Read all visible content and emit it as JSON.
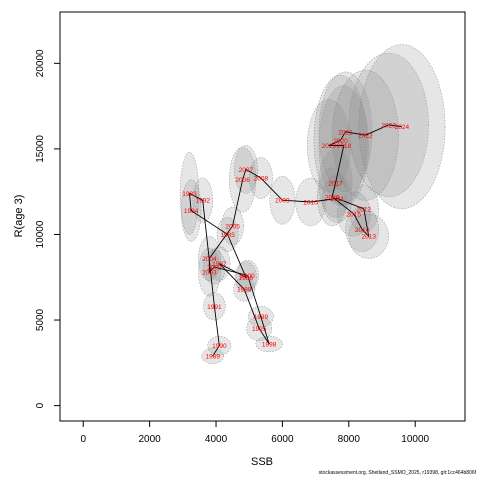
{
  "chart_data": {
    "type": "scatter",
    "xlabel": "SSB",
    "ylabel": "R(age 3)",
    "xlim": [
      -700,
      11500
    ],
    "ylim": [
      -900,
      23000
    ],
    "x_ticks": [
      0,
      2000,
      4000,
      6000,
      8000,
      10000
    ],
    "y_ticks": [
      0,
      5000,
      10000,
      15000,
      20000
    ],
    "grid": false,
    "label_color": "#ff0000",
    "line_color": "#000000",
    "ellipse_fill": "#808080",
    "series": [
      {
        "year": "1983",
        "ssb": 3200,
        "rec": 12400,
        "sx": 280,
        "sy": 2400,
        "opacity": 0.2
      },
      {
        "year": "1984",
        "ssb": 3250,
        "rec": 11400,
        "sx": 300,
        "sy": 1800,
        "opacity": 0.2
      },
      {
        "year": "1985",
        "ssb": 4350,
        "rec": 10000,
        "sx": 320,
        "sy": 1000,
        "opacity": 0.2
      },
      {
        "year": "1986",
        "ssb": 4900,
        "rec": 7500,
        "sx": 320,
        "sy": 900,
        "opacity": 0.2
      },
      {
        "year": "1987",
        "ssb": 4100,
        "rec": 8300,
        "sx": 320,
        "sy": 1000,
        "opacity": 0.2
      },
      {
        "year": "1988",
        "ssb": 4850,
        "rec": 6800,
        "sx": 320,
        "sy": 700,
        "opacity": 0.2
      },
      {
        "year": "1989",
        "ssb": 3900,
        "rec": 2900,
        "sx": 330,
        "sy": 450,
        "opacity": 0.2
      },
      {
        "year": "1990",
        "ssb": 4100,
        "rec": 3500,
        "sx": 350,
        "sy": 550,
        "opacity": 0.2
      },
      {
        "year": "1991",
        "ssb": 3950,
        "rec": 5800,
        "sx": 330,
        "sy": 800,
        "opacity": 0.2
      },
      {
        "year": "1992",
        "ssb": 3600,
        "rec": 12000,
        "sx": 300,
        "sy": 1300,
        "opacity": 0.2
      },
      {
        "year": "1995",
        "ssb": 5300,
        "rec": 4500,
        "sx": 380,
        "sy": 700,
        "opacity": 0.2
      },
      {
        "year": "1998",
        "ssb": 5600,
        "rec": 3600,
        "sx": 400,
        "sy": 450,
        "opacity": 0.2
      },
      {
        "year": "1999",
        "ssb": 5350,
        "rec": 5200,
        "sx": 380,
        "sy": 600,
        "opacity": 0.2
      },
      {
        "year": "2000",
        "ssb": 4950,
        "rec": 7600,
        "sx": 330,
        "sy": 900,
        "opacity": 0.2
      },
      {
        "year": "2002",
        "ssb": 3950,
        "rec": 8100,
        "sx": 330,
        "sy": 1000,
        "opacity": 0.2
      },
      {
        "year": "2003",
        "ssb": 3800,
        "rec": 7800,
        "sx": 330,
        "sy": 1400,
        "opacity": 0.2
      },
      {
        "year": "2004",
        "ssb": 3800,
        "rec": 8600,
        "sx": 330,
        "sy": 1300,
        "opacity": 0.2
      },
      {
        "year": "2005",
        "ssb": 4500,
        "rec": 10500,
        "sx": 330,
        "sy": 1100,
        "opacity": 0.2
      },
      {
        "year": "2006",
        "ssb": 4800,
        "rec": 13200,
        "sx": 400,
        "sy": 1900,
        "opacity": 0.2
      },
      {
        "year": "2007",
        "ssb": 4900,
        "rec": 13800,
        "sx": 350,
        "sy": 1400,
        "opacity": 0.2
      },
      {
        "year": "2008",
        "ssb": 5350,
        "rec": 13300,
        "sx": 350,
        "sy": 1200,
        "opacity": 0.2
      },
      {
        "year": "2009",
        "ssb": 6000,
        "rec": 12000,
        "sx": 380,
        "sy": 1400,
        "opacity": 0.2
      },
      {
        "year": "2010",
        "ssb": 6850,
        "rec": 11900,
        "sx": 450,
        "sy": 1400,
        "opacity": 0.2
      },
      {
        "year": "2011",
        "ssb": 7650,
        "rec": 12100,
        "sx": 450,
        "sy": 1400,
        "opacity": 0.2
      },
      {
        "year": "2012",
        "ssb": 8450,
        "rec": 11500,
        "sx": 450,
        "sy": 1400,
        "opacity": 0.2
      },
      {
        "year": "2013",
        "ssb": 8600,
        "rec": 9900,
        "sx": 600,
        "sy": 1300,
        "opacity": 0.2
      },
      {
        "year": "2014",
        "ssb": 8400,
        "rec": 10300,
        "sx": 500,
        "sy": 1300,
        "opacity": 0.2
      },
      {
        "year": "2015",
        "ssb": 8150,
        "rec": 11200,
        "sx": 500,
        "sy": 1300,
        "opacity": 0.2
      },
      {
        "year": "2016",
        "ssb": 7500,
        "rec": 12200,
        "sx": 450,
        "sy": 1700,
        "opacity": 0.2
      },
      {
        "year": "2017",
        "ssb": 7600,
        "rec": 13000,
        "sx": 500,
        "sy": 2000,
        "opacity": 0.2
      },
      {
        "year": "2018",
        "ssb": 7850,
        "rec": 15200,
        "sx": 750,
        "sy": 3500,
        "opacity": 0.2
      },
      {
        "year": "2019",
        "ssb": 7400,
        "rec": 15200,
        "sx": 650,
        "sy": 2700,
        "opacity": 0.2
      },
      {
        "year": "2020",
        "ssb": 7750,
        "rec": 15500,
        "sx": 800,
        "sy": 3800,
        "opacity": 0.2
      },
      {
        "year": "2021",
        "ssb": 7900,
        "rec": 16000,
        "sx": 800,
        "sy": 3500,
        "opacity": 0.2
      },
      {
        "year": "2022",
        "ssb": 8500,
        "rec": 15800,
        "sx": 1000,
        "sy": 3800,
        "opacity": 0.2
      },
      {
        "year": "2023",
        "ssb": 9200,
        "rec": 16400,
        "sx": 1200,
        "sy": 4200,
        "opacity": 0.2
      },
      {
        "year": "2024",
        "ssb": 9600,
        "rec": 16300,
        "sx": 1300,
        "sy": 4800,
        "opacity": 0.2
      }
    ],
    "path_order": [
      "1989",
      "1990",
      "1991",
      "1992",
      "1983",
      "1984",
      "1985",
      "1986",
      "1987",
      "1988",
      "1995",
      "1998",
      "1999",
      "2000",
      "2002",
      "2003",
      "2004",
      "2005",
      "2006",
      "2007",
      "2008",
      "2009",
      "2010",
      "2011",
      "2012",
      "2013",
      "2014",
      "2015",
      "2016",
      "2017",
      "2018",
      "2019",
      "2020",
      "2021",
      "2022",
      "2023",
      "2024"
    ]
  },
  "footer": "stockassessment.org, Shetland_SSMO_2025, r19398, git:1cc464b806f"
}
